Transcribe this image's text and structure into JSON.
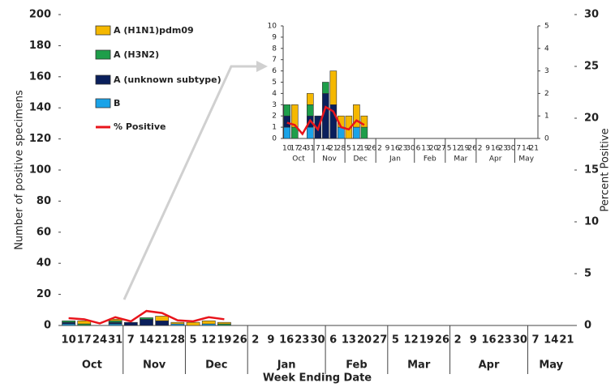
{
  "chart_data": [
    {
      "type": "bar",
      "x_label": "Week Ending Date",
      "y_label": "Number of positive specimens",
      "y2_label": "Percent Positive",
      "groups": [
        {
          "label": "Oct",
          "categories": [
            "10",
            "17",
            "24",
            "31"
          ]
        },
        {
          "label": "Nov",
          "categories": [
            "7",
            "14",
            "21",
            "28"
          ]
        },
        {
          "label": "Dec",
          "categories": [
            "5",
            "12",
            "19",
            "26"
          ]
        },
        {
          "label": "Jan",
          "categories": [
            "2",
            "9",
            "16",
            "23",
            "30"
          ]
        },
        {
          "label": "Feb",
          "categories": [
            "6",
            "13",
            "20",
            "27"
          ]
        },
        {
          "label": "Mar",
          "categories": [
            "5",
            "12",
            "19",
            "26"
          ]
        },
        {
          "label": "Apr",
          "categories": [
            "2",
            "9",
            "16",
            "23",
            "30"
          ]
        },
        {
          "label": "May",
          "categories": [
            "7",
            "14",
            "21"
          ]
        }
      ],
      "series": [
        {
          "name": "A (H1N1)pdm09",
          "color": "#f5b800",
          "values": [
            0,
            2,
            0,
            1,
            0,
            0,
            3,
            1,
            2,
            2,
            1,
            0,
            0,
            0,
            0,
            0,
            0,
            0,
            0,
            0,
            0,
            0,
            0,
            0,
            0,
            0,
            0,
            0,
            0,
            0,
            0,
            0,
            0
          ]
        },
        {
          "name": "A (H3N2)",
          "color": "#1e9e4a",
          "values": [
            1,
            1,
            0,
            1,
            0,
            1,
            0,
            0,
            0,
            0,
            1,
            0,
            0,
            0,
            0,
            0,
            0,
            0,
            0,
            0,
            0,
            0,
            0,
            0,
            0,
            0,
            0,
            0,
            0,
            0,
            0,
            0,
            0
          ]
        },
        {
          "name": "A (unknown subtype)",
          "color": "#0a1f5c",
          "values": [
            1,
            0,
            0,
            1,
            2,
            4,
            3,
            0,
            0,
            0,
            0,
            0,
            0,
            0,
            0,
            0,
            0,
            0,
            0,
            0,
            0,
            0,
            0,
            0,
            0,
            0,
            0,
            0,
            0,
            0,
            0,
            0,
            0
          ]
        },
        {
          "name": "B",
          "color": "#1aa3e8",
          "values": [
            1,
            0,
            0,
            1,
            0,
            0,
            0,
            1,
            0,
            1,
            0,
            0,
            0,
            0,
            0,
            0,
            0,
            0,
            0,
            0,
            0,
            0,
            0,
            0,
            0,
            0,
            0,
            0,
            0,
            0,
            0,
            0,
            0
          ]
        },
        {
          "name": "% Positive",
          "color": "#e8141b",
          "type": "line",
          "axis": "y2",
          "values": [
            0.7,
            0.6,
            0.2,
            0.8,
            0.4,
            1.4,
            1.2,
            0.5,
            0.4,
            0.8,
            0.6,
            null,
            null,
            null,
            null,
            null,
            null,
            null,
            null,
            null,
            null,
            null,
            null,
            null,
            null,
            null,
            null,
            null,
            null,
            null,
            null,
            null,
            null
          ]
        }
      ],
      "ylim": [
        0,
        200
      ],
      "yticks": [
        0,
        20,
        40,
        60,
        80,
        100,
        120,
        140,
        160,
        180,
        200
      ],
      "y2lim": [
        0,
        30
      ],
      "y2ticks": [
        0,
        5,
        10,
        15,
        20,
        25,
        30
      ]
    },
    {
      "type": "bar",
      "ylim": [
        0,
        10
      ],
      "yticks": [
        0,
        1,
        2,
        3,
        4,
        5,
        6,
        7,
        8,
        9,
        10
      ],
      "y2lim": [
        0,
        5
      ],
      "y2ticks": [
        0,
        1,
        2,
        3,
        4,
        5
      ]
    }
  ]
}
